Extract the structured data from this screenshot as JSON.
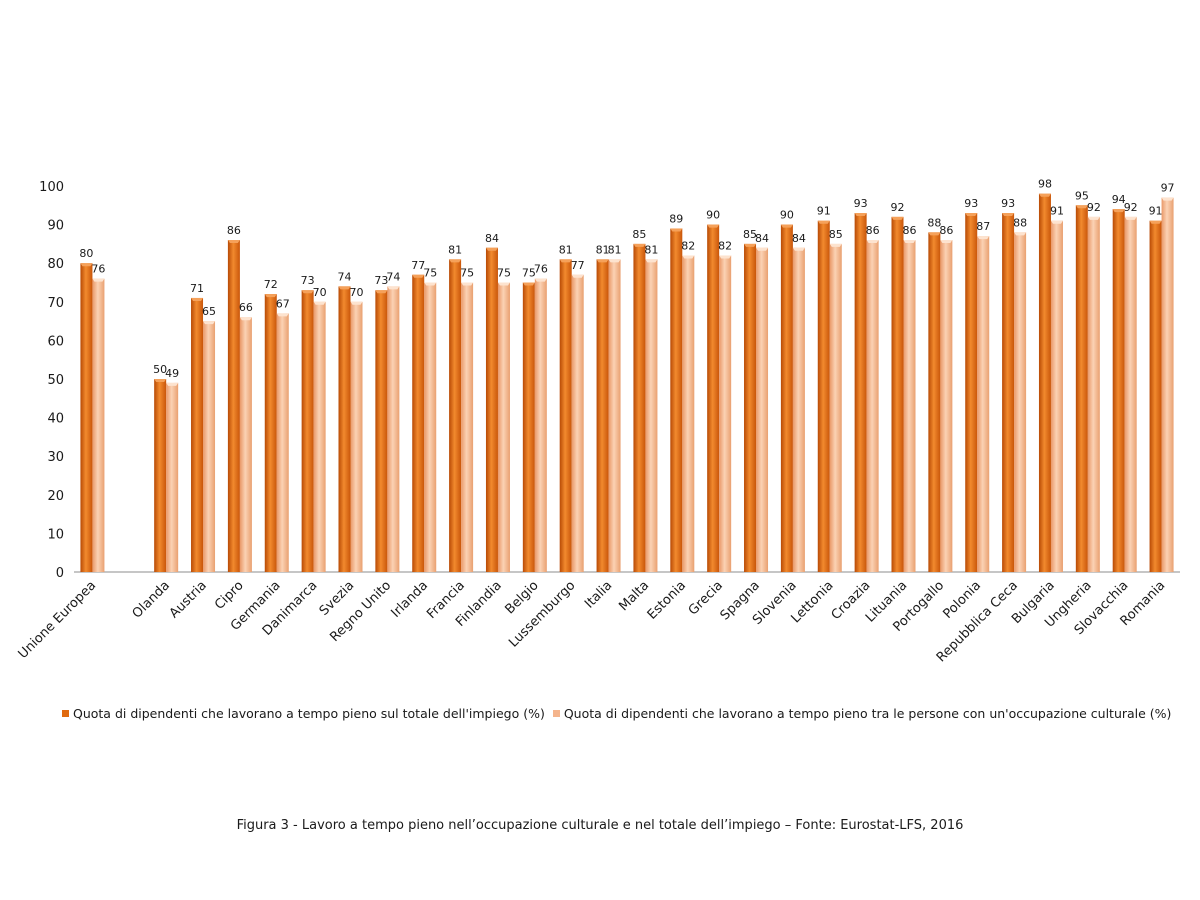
{
  "chart_data": {
    "type": "bar",
    "categories": [
      "Unione Europea",
      "",
      "Olanda",
      "Austria",
      "Cipro",
      "Germania",
      "Danimarca",
      "Svezia",
      "Regno Unito",
      "Irlanda",
      "Francia",
      "Finlandia",
      "Belgio",
      "Lussemburgo",
      "Italia",
      "Malta",
      "Estonia",
      "Grecia",
      "Spagna",
      "Slovenia",
      "Lettonia",
      "Croazia",
      "Lituania",
      "Portogallo",
      "Polonia",
      "Repubblica Ceca",
      "Bulgaria",
      "Ungheria",
      "Slovacchia",
      "Romania"
    ],
    "series": [
      {
        "name": "Quota di dipendenti che lavorano a tempo pieno sul totale dell'impiego (%)",
        "color": "#e06a0f",
        "values": [
          80,
          null,
          50,
          71,
          86,
          72,
          73,
          74,
          73,
          77,
          81,
          84,
          75,
          81,
          81,
          85,
          89,
          90,
          85,
          90,
          91,
          93,
          92,
          88,
          93,
          93,
          98,
          95,
          94,
          91
        ]
      },
      {
        "name": "Quota di dipendenti che lavorano a tempo pieno tra le persone con un'occupazione culturale (%)",
        "color": "#f4b48c",
        "values": [
          76,
          null,
          49,
          65,
          66,
          67,
          70,
          70,
          74,
          75,
          75,
          75,
          76,
          77,
          81,
          81,
          82,
          82,
          84,
          84,
          85,
          86,
          86,
          86,
          87,
          88,
          91,
          92,
          92,
          97
        ]
      }
    ],
    "yticks": [
      "0",
      "10",
      "20",
      "30",
      "40",
      "50",
      "60",
      "70",
      "80",
      "90",
      "100"
    ],
    "ylim": [
      0,
      100
    ],
    "grid": false,
    "legend_position": "bottom"
  },
  "caption": "Figura 3 - Lavoro a tempo pieno nell’occupazione culturale e nel totale dell’impiego – Fonte: Eurostat-LFS, 2016"
}
